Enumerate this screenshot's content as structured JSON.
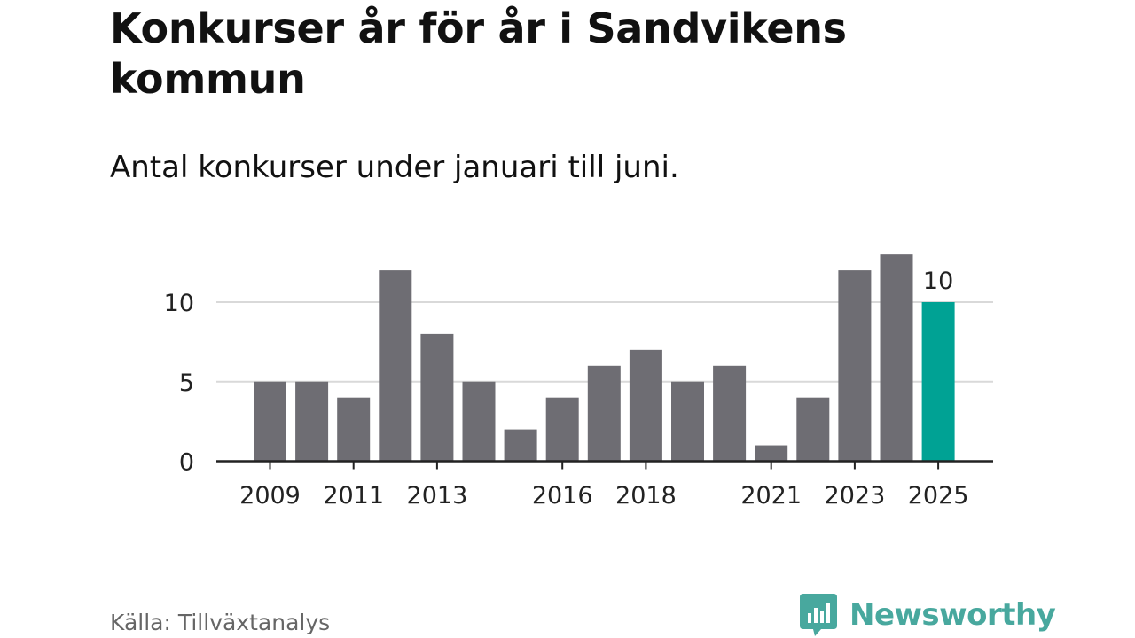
{
  "title": "Konkurser år för år i Sandvikens kommun",
  "subtitle": "Antal konkurser under januari till juni.",
  "source": "Källa: Tillväxtanalys",
  "brand": {
    "name": "Newsworthy",
    "icon": "bar-chart-speech-bubble-icon",
    "color": "#48a89e"
  },
  "colors": {
    "bar": "#6e6d73",
    "highlight": "#00a294",
    "grid": "#d9d9d9",
    "axis": "#222222",
    "text": "#222222"
  },
  "chart_data": {
    "type": "bar",
    "title": "Konkurser år för år i Sandvikens kommun",
    "subtitle": "Antal konkurser under januari till juni.",
    "xlabel": "",
    "ylabel": "",
    "categories": [
      "2009",
      "2010",
      "2011",
      "2012",
      "2013",
      "2014",
      "2015",
      "2016",
      "2017",
      "2018",
      "2019",
      "2020",
      "2021",
      "2022",
      "2023",
      "2024",
      "2025"
    ],
    "values": [
      5,
      5,
      4,
      12,
      8,
      5,
      2,
      4,
      6,
      7,
      5,
      6,
      1,
      4,
      12,
      13,
      10
    ],
    "x_tick_labels": [
      "2009",
      "2011",
      "2013",
      "2016",
      "2018",
      "2021",
      "2023",
      "2025"
    ],
    "y_ticks": [
      0,
      5,
      10
    ],
    "ylim": [
      0,
      13
    ],
    "grid": true,
    "highlight": {
      "category": "2025",
      "label": "10"
    },
    "legend": "none"
  }
}
